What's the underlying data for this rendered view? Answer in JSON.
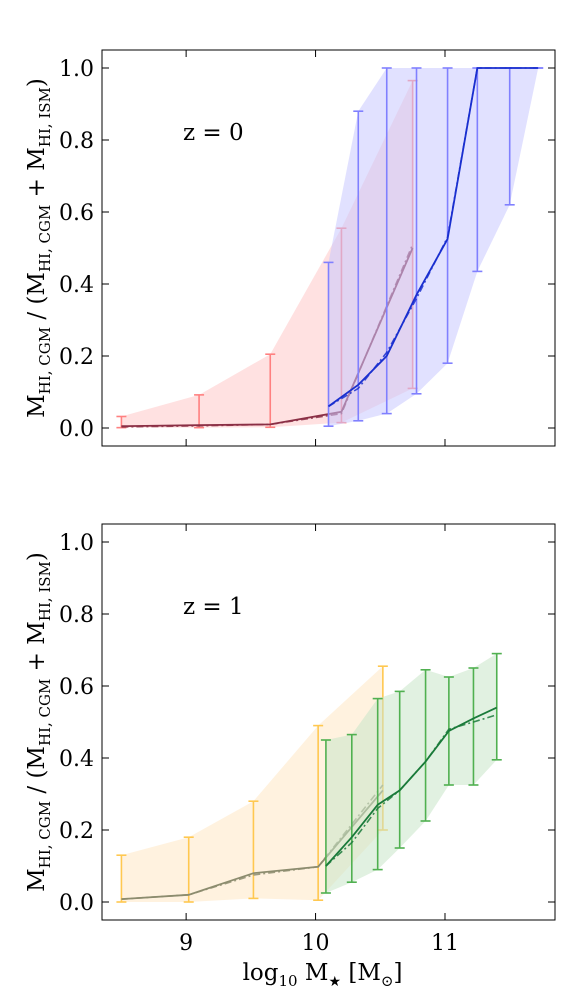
{
  "chart_data": [
    {
      "type": "line",
      "annotation": "z = 0",
      "ylabel_main": "M",
      "ylabel_sub_cgm": "HI, CGM",
      "ylabel_sub_ism": "HI, ISM",
      "ylabel_mid": " / (M",
      "ylabel_plus": " + M",
      "ylabel_end": ")",
      "xlim": [
        8.35,
        11.85
      ],
      "ylim": [
        -0.05,
        1.05
      ],
      "yticks": [
        "0.0",
        "0.2",
        "0.4",
        "0.6",
        "0.8",
        "1.0"
      ],
      "ytick_values": [
        0.0,
        0.2,
        0.4,
        0.6,
        0.8,
        1.0
      ],
      "xtick_values": [
        9,
        10,
        11
      ],
      "series": [
        {
          "color": "#ff8080",
          "fill": "#ffc8c8",
          "line": "#8b2f45",
          "x": [
            8.5,
            9.1,
            9.65,
            10.2,
            10.75
          ],
          "y": [
            0.005,
            0.008,
            0.01,
            0.045,
            0.5
          ],
          "y_dashed": [
            0.003,
            0.006,
            0.01,
            0.04,
            0.51
          ],
          "lo": [
            0.001,
            0.001,
            0.002,
            0.015,
            0.11
          ],
          "hi": [
            0.032,
            0.092,
            0.205,
            0.555,
            0.965
          ]
        },
        {
          "color": "#8080ff",
          "fill": "#c8c8ff",
          "line": "#1a2fcf",
          "x": [
            10.1,
            10.33,
            10.55,
            10.78,
            11.02,
            11.25,
            11.5,
            11.72
          ],
          "y": [
            0.06,
            0.12,
            0.2,
            0.37,
            0.525,
            1.0,
            1.0,
            1.0
          ],
          "y_dashed": [
            0.06,
            0.11,
            0.21,
            0.36,
            0.53,
            1.0,
            1.0,
            1.0
          ],
          "lo": [
            0.005,
            0.02,
            0.04,
            0.095,
            0.18,
            0.435,
            0.62,
            1.0
          ],
          "hi": [
            0.46,
            0.88,
            1.0,
            1.0,
            1.0,
            1.0,
            1.0,
            1.0
          ]
        }
      ]
    },
    {
      "type": "line",
      "annotation": "z = 1",
      "ylabel_main": "M",
      "ylabel_sub_cgm": "HI, CGM",
      "ylabel_sub_ism": "HI, ISM",
      "ylabel_mid": " / (M",
      "ylabel_plus": " + M",
      "ylabel_end": ")",
      "xlabel_pre": "log",
      "xlabel_sub": "10",
      "xlabel_mid": " M",
      "xlabel_star": "★",
      "xlabel_open": " [M",
      "xlabel_sun": "⊙",
      "xlabel_close": "]",
      "xlim": [
        8.35,
        11.85
      ],
      "ylim": [
        -0.05,
        1.05
      ],
      "yticks": [
        "0.0",
        "0.2",
        "0.4",
        "0.6",
        "0.8",
        "1.0"
      ],
      "ytick_values": [
        0.0,
        0.2,
        0.4,
        0.6,
        0.8,
        1.0
      ],
      "xticks": [
        "9",
        "10",
        "11"
      ],
      "xtick_values": [
        9,
        10,
        11
      ],
      "series": [
        {
          "color": "#ffc850",
          "fill": "#ffe8c4",
          "line": "#8c8c6e",
          "x": [
            8.5,
            9.02,
            9.52,
            10.02,
            10.52
          ],
          "y": [
            0.008,
            0.02,
            0.08,
            0.098,
            0.31
          ],
          "y_dashed": [
            0.008,
            0.02,
            0.075,
            0.098,
            0.325
          ],
          "lo": [
            0.0,
            0.0,
            0.01,
            0.005,
            0.2
          ],
          "hi": [
            0.13,
            0.18,
            0.28,
            0.49,
            0.655
          ]
        },
        {
          "color": "#50b050",
          "fill": "#c8e6c8",
          "line": "#1a7a3a",
          "x": [
            10.08,
            10.28,
            10.48,
            10.65,
            10.85,
            11.03,
            11.22,
            11.4
          ],
          "y": [
            0.1,
            0.18,
            0.27,
            0.31,
            0.39,
            0.475,
            0.51,
            0.54
          ],
          "y_dashed": [
            0.1,
            0.165,
            0.26,
            0.31,
            0.39,
            0.48,
            0.5,
            0.52
          ],
          "lo": [
            0.025,
            0.055,
            0.09,
            0.15,
            0.225,
            0.325,
            0.325,
            0.395
          ],
          "hi": [
            0.45,
            0.465,
            0.565,
            0.585,
            0.645,
            0.625,
            0.65,
            0.69
          ]
        }
      ]
    }
  ]
}
